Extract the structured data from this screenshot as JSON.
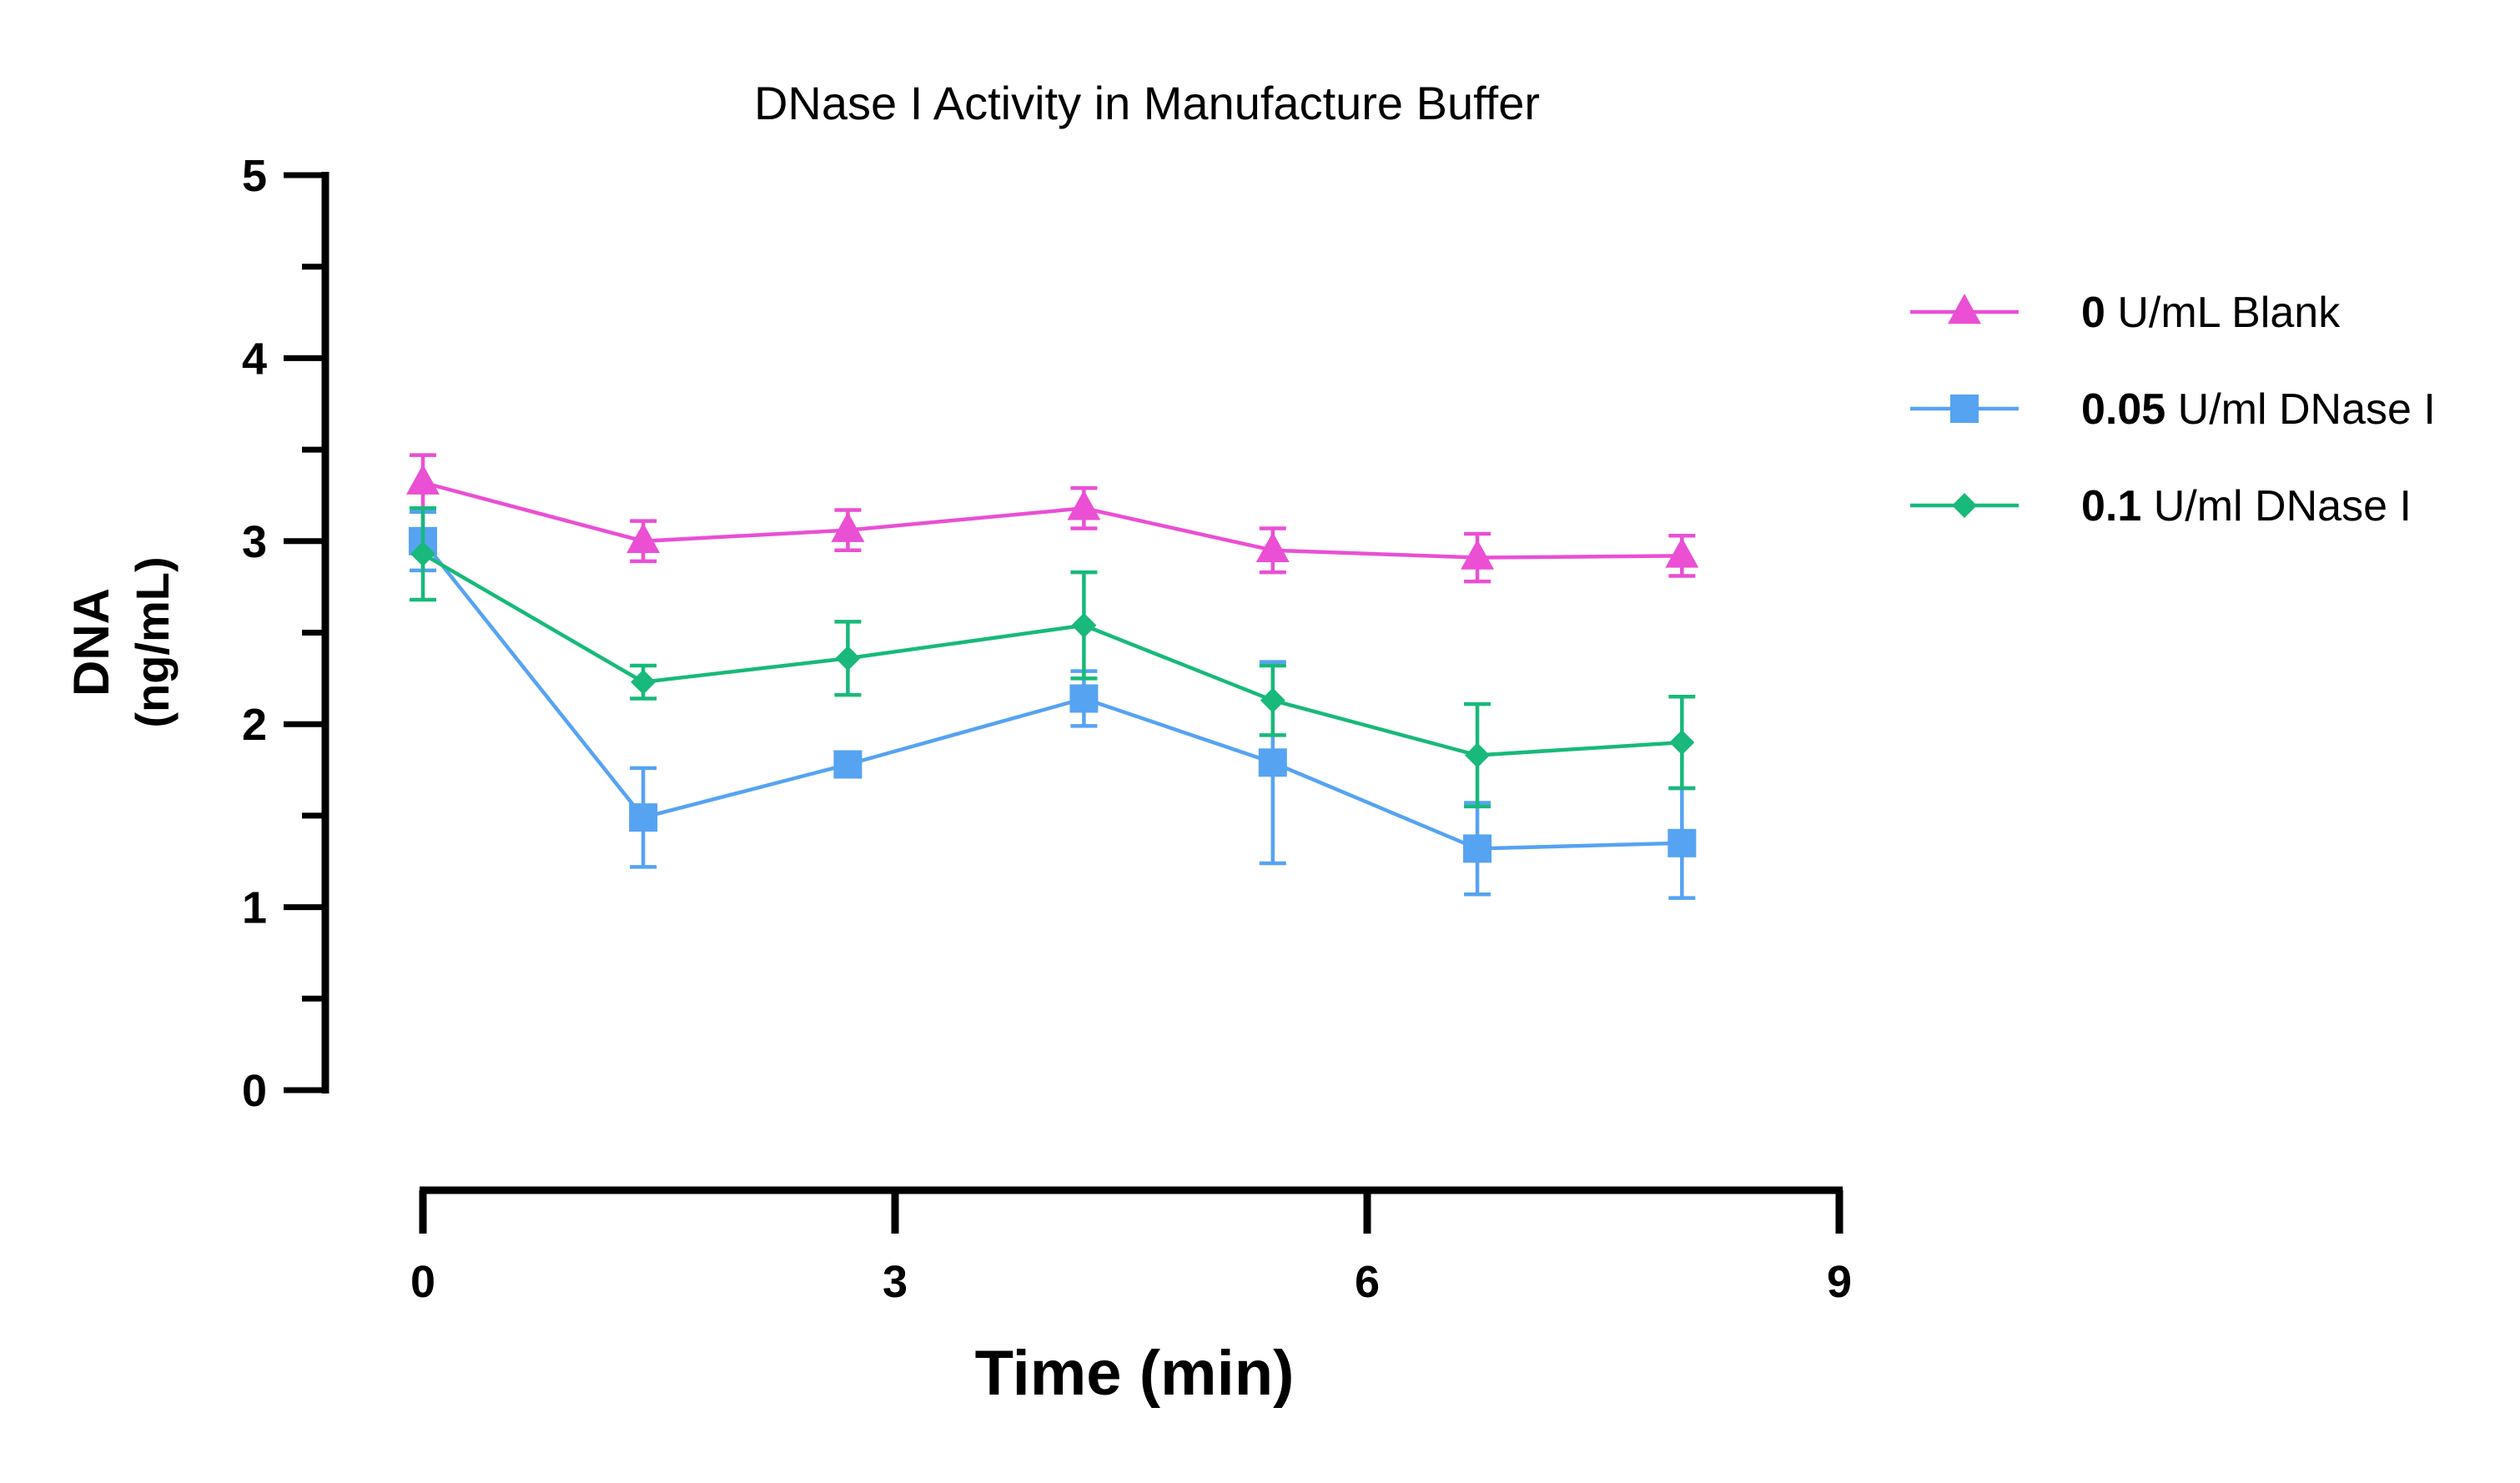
{
  "chart_data": {
    "type": "line",
    "title": "DNase I Activity in Manufacture Buffer",
    "xlabel": "Time (min)",
    "ylabel": [
      "DNA",
      "(ng/mL)"
    ],
    "xlim": [
      0,
      9
    ],
    "ylim": [
      0,
      5
    ],
    "xticks": [
      "0",
      "3",
      "6",
      "9"
    ],
    "yticks": [
      "0",
      "1",
      "2",
      "3",
      "4",
      "5"
    ],
    "grid": false,
    "legend_position": "right",
    "x": [
      0,
      1.4,
      2.7,
      4.2,
      5.4,
      6.7,
      8.0
    ],
    "series": [
      {
        "name_bold": "0",
        "name_rest": " U/mL Blank",
        "color": "#ea4fd4",
        "marker": "triangle",
        "values": [
          3.32,
          3.0,
          3.06,
          3.18,
          2.95,
          2.91,
          2.92
        ],
        "errors": [
          0.15,
          0.11,
          0.11,
          0.11,
          0.12,
          0.13,
          0.11
        ]
      },
      {
        "name_bold": "0.05",
        "name_rest": " U/ml DNase I",
        "color": "#56a3f2",
        "marker": "square",
        "values": [
          3.0,
          1.49,
          1.78,
          2.14,
          1.79,
          1.32,
          1.35
        ],
        "errors": [
          0.16,
          0.27,
          0.03,
          0.15,
          0.55,
          0.25,
          0.3
        ]
      },
      {
        "name_bold": "0.1",
        "name_rest": " U/ml DNase I",
        "color": "#18b97a",
        "marker": "diamond",
        "values": [
          2.93,
          2.23,
          2.36,
          2.54,
          2.13,
          1.83,
          1.9
        ],
        "errors": [
          0.25,
          0.09,
          0.2,
          0.29,
          0.19,
          0.28,
          0.25
        ]
      }
    ]
  }
}
